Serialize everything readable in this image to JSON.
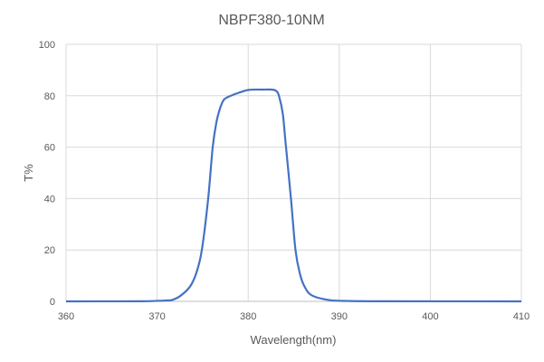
{
  "chart_data": {
    "type": "line",
    "title": "NBPF380-10NM",
    "xlabel": "Wavelength(nm)",
    "ylabel": "T%",
    "xlim": [
      360,
      410
    ],
    "ylim": [
      0,
      100
    ],
    "xticks": [
      360,
      370,
      380,
      390,
      400,
      410
    ],
    "yticks": [
      0,
      20,
      40,
      60,
      80,
      100
    ],
    "grid": true,
    "legend": "none",
    "line_color": "#4472C4",
    "series": [
      {
        "x": [
          360,
          368,
          370,
          371,
          371.6,
          372.5,
          373.6,
          374.3,
          374.9,
          375.6,
          376.1,
          376.5,
          376.9,
          377.3,
          377.9,
          379,
          380.1,
          381.5,
          382.6,
          383.1,
          383.4,
          383.8,
          384.1,
          384.7,
          385.2,
          385.7,
          386.2,
          387,
          388.9,
          391,
          395,
          410
        ],
        "y": [
          0,
          0.05,
          0.2,
          0.35,
          0.5,
          2,
          5.7,
          11,
          19.8,
          39.8,
          59.9,
          69.5,
          75,
          78.3,
          79.7,
          81.2,
          82.3,
          82.4,
          82.4,
          81.8,
          79.7,
          73,
          62,
          39.8,
          19.8,
          10.5,
          5.7,
          2.3,
          0.5,
          0.15,
          0.05,
          0
        ]
      }
    ]
  }
}
